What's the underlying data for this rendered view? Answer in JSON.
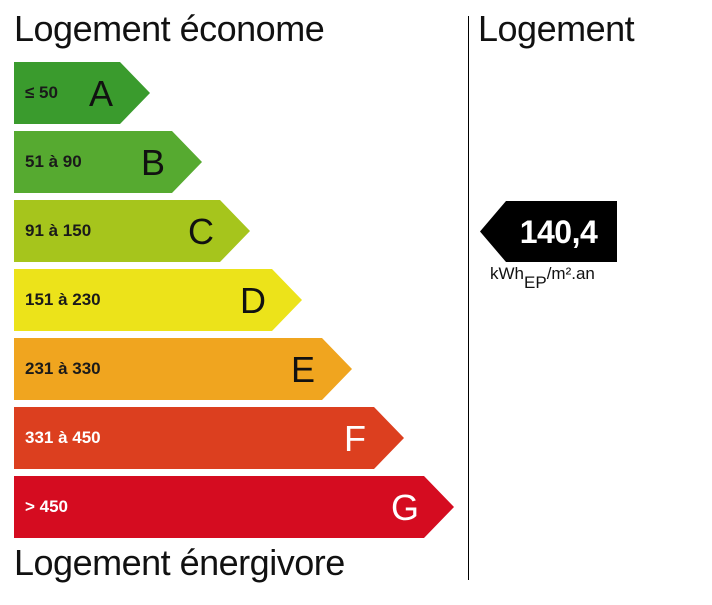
{
  "header": {
    "title_left": "Logement économe",
    "title_right": "Logement"
  },
  "footer": {
    "title_left": "Logement énergivore"
  },
  "scale": [
    {
      "range": "≤ 50",
      "letter": "A",
      "color": "#3a9b2d"
    },
    {
      "range": "51 à 90",
      "letter": "B",
      "color": "#56aa30"
    },
    {
      "range": "91 à 150",
      "letter": "C",
      "color": "#a6c51c"
    },
    {
      "range": "151 à 230",
      "letter": "D",
      "color": "#ece31a"
    },
    {
      "range": "231 à 330",
      "letter": "E",
      "color": "#f0a51f"
    },
    {
      "range": "331 à 450",
      "letter": "F",
      "color": "#dc3f1f"
    },
    {
      "range": "> 450",
      "letter": "G",
      "color": "#d50c20"
    }
  ],
  "indicator": {
    "value": "140,4",
    "unit_prefix": "kWh",
    "unit_sub": "EP",
    "unit_suffix": "/m².an",
    "color": "#000000"
  }
}
